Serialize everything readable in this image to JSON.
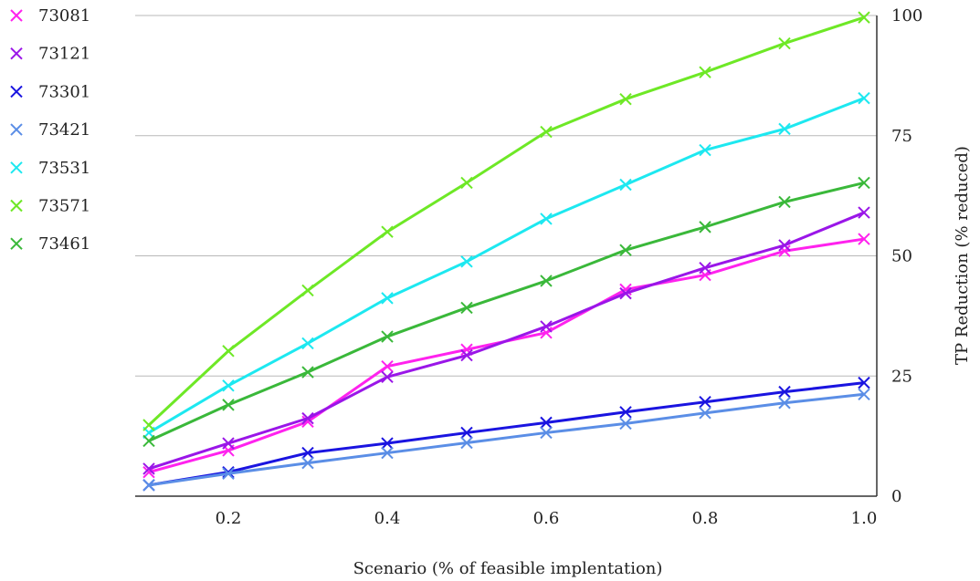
{
  "chart_data": {
    "type": "line",
    "xlabel": "Scenario (% of feasible implentation)",
    "ylabel": "TP Reduction (% reduced)",
    "xlim": [
      0.1,
      1.0
    ],
    "ylim": [
      0,
      100
    ],
    "x_ticks": [
      "0.2",
      "0.4",
      "0.6",
      "0.8",
      "1.0"
    ],
    "y_ticks": [
      "0",
      "25",
      "50",
      "75",
      "100"
    ],
    "y_axis_position": "right",
    "grid": "horizontal",
    "legend_position": "top-left",
    "marker": "x",
    "x": [
      0.1,
      0.2,
      0.3,
      0.4,
      0.5,
      0.6,
      0.7,
      0.8,
      0.9,
      1.0
    ],
    "series": [
      {
        "name": "73081",
        "color": "#ff22ee",
        "values": [
          5,
          9.5,
          15.5,
          27,
          30.5,
          34,
          43,
          46,
          51,
          53.5
        ]
      },
      {
        "name": "73121",
        "color": "#9a16e8",
        "values": [
          5.7,
          11,
          16.2,
          24.8,
          29.3,
          35.3,
          42.2,
          47.5,
          52.2,
          59
        ]
      },
      {
        "name": "73301",
        "color": "#1a14e0",
        "values": [
          2.3,
          5,
          9,
          11,
          13.2,
          15.3,
          17.5,
          19.6,
          21.7,
          23.6
        ]
      },
      {
        "name": "73421",
        "color": "#5b8ee6",
        "values": [
          2.3,
          4.7,
          6.9,
          9,
          11.1,
          13.2,
          15.1,
          17.3,
          19.4,
          21.2
        ]
      },
      {
        "name": "73531",
        "color": "#1de8f0",
        "values": [
          13.2,
          23,
          31.8,
          41.2,
          48.8,
          57.7,
          64.8,
          72,
          76.4,
          82.8
        ]
      },
      {
        "name": "73571",
        "color": "#6ee826",
        "values": [
          14.8,
          30.2,
          42.8,
          55,
          65.2,
          75.8,
          82.6,
          88.2,
          94.2,
          99.6
        ]
      },
      {
        "name": "73461",
        "color": "#3ab83a",
        "values": [
          11.5,
          19,
          25.8,
          33.2,
          39.2,
          44.8,
          51.2,
          56,
          61.2,
          65.2
        ]
      }
    ]
  }
}
